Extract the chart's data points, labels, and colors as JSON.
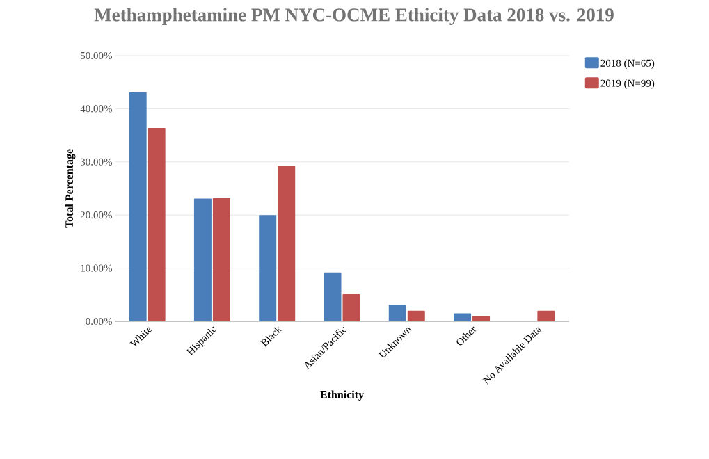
{
  "chart_data": {
    "type": "bar",
    "title": "Methamphetamine PM NYC-OCME Ethicity Data 2018 vs. 2019",
    "xlabel": "Ethnicity",
    "ylabel": "Total Percentage",
    "categories": [
      "White",
      "Hispanic",
      "Black",
      "Asian/Pacific",
      "Unknown",
      "Other",
      "No Available Data"
    ],
    "series": [
      {
        "name": "2018 (N=65)",
        "color": "#4a7ebb",
        "values": [
          43.1,
          23.1,
          20.0,
          9.2,
          3.1,
          1.5,
          0
        ]
      },
      {
        "name": "2019 (N=99)",
        "color": "#c0504d",
        "values": [
          36.4,
          23.2,
          29.3,
          5.1,
          2.0,
          1.0,
          2.0
        ]
      }
    ],
    "ylim": [
      0,
      50
    ],
    "yticks": [
      {
        "value": 0,
        "label": "0.00%"
      },
      {
        "value": 10,
        "label": "10.00%"
      },
      {
        "value": 20,
        "label": "20.00%"
      },
      {
        "value": 30,
        "label": "30.00%"
      },
      {
        "value": 40,
        "label": "40.00%"
      },
      {
        "value": 50,
        "label": "50.00%"
      }
    ],
    "grid": "y",
    "legend": "top right"
  }
}
